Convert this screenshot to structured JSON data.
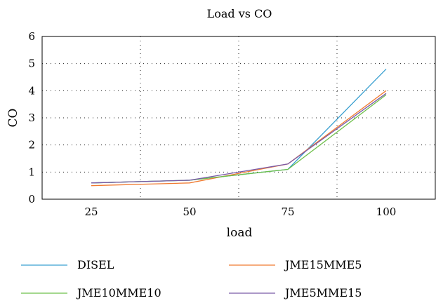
{
  "chart_data": {
    "type": "line",
    "title": "Load vs CO",
    "xlabel": "load",
    "ylabel": "CO",
    "categories": [
      "25",
      "50",
      "75",
      "100"
    ],
    "ylim": [
      0,
      6
    ],
    "yticks": [
      0,
      1,
      2,
      3,
      4,
      5,
      6
    ],
    "grid": "dotted",
    "legend_position": "bottom",
    "series": [
      {
        "name": "DISEL",
        "color": "#3aa0d0",
        "values": [
          0.6,
          0.7,
          1.1,
          4.8
        ]
      },
      {
        "name": "JME15MME5",
        "color": "#f07a30",
        "values": [
          0.5,
          0.6,
          1.3,
          4.0
        ]
      },
      {
        "name": "JME10MME10",
        "color": "#6ec04a",
        "values": [
          0.6,
          0.7,
          1.1,
          3.85
        ]
      },
      {
        "name": "JME5MME15",
        "color": "#7a5aa8",
        "values": [
          0.6,
          0.7,
          1.3,
          3.9
        ]
      }
    ]
  }
}
